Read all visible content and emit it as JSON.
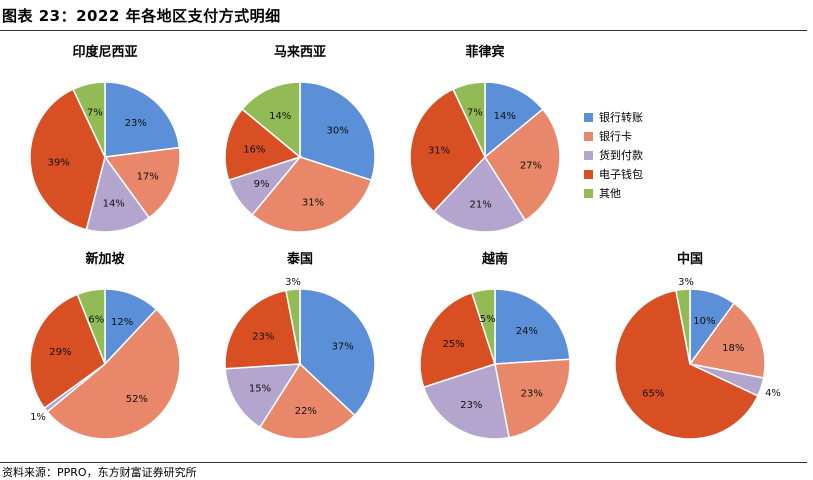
{
  "figure": {
    "title": "图表 23：2022 年各地区支付方式明细",
    "source": "资料来源：PPRO，东方财富证券研究所"
  },
  "colors": {
    "bank_transfer": "#5b8fd8",
    "bank_card": "#e8876a",
    "cod": "#b4a5cf",
    "ewallet": "#d94f24",
    "other": "#92bb55"
  },
  "chart_data": {
    "type": "pie",
    "categories": [
      "银行转账",
      "银行卡",
      "货到付款",
      "电子钱包",
      "其他"
    ],
    "legend_position": "right",
    "charts": [
      {
        "title": "印度尼西亚",
        "values": [
          23,
          17,
          14,
          39,
          7
        ],
        "labels": [
          "23%",
          "17%",
          "14%",
          "39%",
          "7%"
        ]
      },
      {
        "title": "马来西亚",
        "values": [
          30,
          31,
          9,
          16,
          14
        ],
        "labels": [
          "30%",
          "31%",
          "9%",
          "16%",
          "14%"
        ]
      },
      {
        "title": "菲律宾",
        "values": [
          14,
          27,
          21,
          31,
          7
        ],
        "labels": [
          "14%",
          "27%",
          "21%",
          "31%",
          "7%"
        ]
      },
      {
        "title": "新加坡",
        "values": [
          12,
          52,
          1,
          29,
          6
        ],
        "labels": [
          "12%",
          "52%",
          "1%",
          "29%",
          "6%"
        ]
      },
      {
        "title": "泰国",
        "values": [
          37,
          22,
          15,
          23,
          3
        ],
        "labels": [
          "37%",
          "22%",
          "15%",
          "23%",
          "3%"
        ]
      },
      {
        "title": "越南",
        "values": [
          24,
          23,
          23,
          25,
          5
        ],
        "labels": [
          "24%",
          "23%",
          "23%",
          "25%",
          "5%"
        ]
      },
      {
        "title": "中国",
        "values": [
          10,
          18,
          4,
          65,
          3
        ],
        "labels": [
          "10%",
          "18%",
          "4%",
          "65%",
          "3%"
        ]
      }
    ]
  }
}
